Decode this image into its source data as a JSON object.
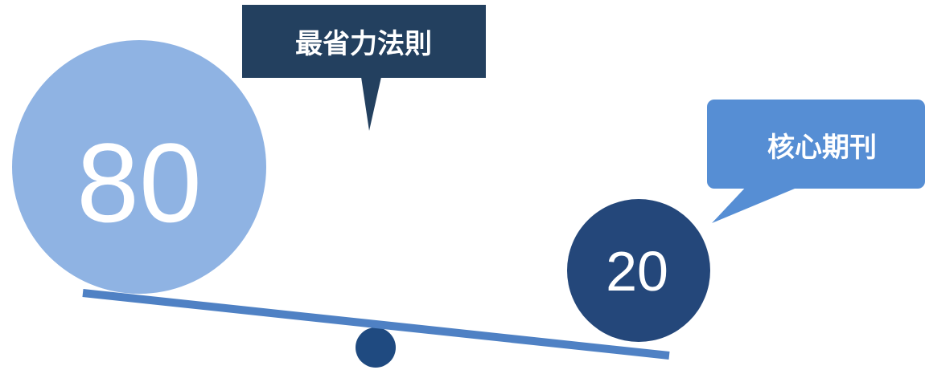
{
  "colors": {
    "light_circle": "#8fb3e3",
    "dark_circle": "#24477a",
    "beam": "#4f81c4",
    "fulcrum": "#1f4a80",
    "callout_dark": "#23405f",
    "callout_blue": "#568ed4",
    "text": "#ffffff"
  },
  "balance": {
    "heavy_value": "80",
    "light_value": "20"
  },
  "callouts": {
    "principle": "最省力法則",
    "core_journals": "核心期刊"
  }
}
